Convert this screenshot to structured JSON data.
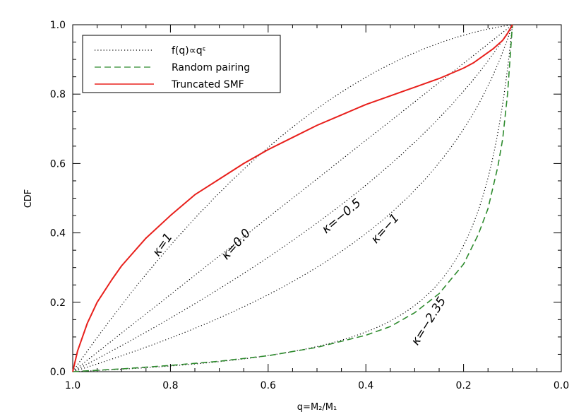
{
  "chart_data": {
    "type": "line",
    "xlabel": "q=M₂/M₁",
    "ylabel": "CDF",
    "xlim": [
      1.0,
      0.0
    ],
    "ylim": [
      0.0,
      1.0
    ],
    "x_reversed": true,
    "grid": false,
    "legend": {
      "placement": "top-left",
      "entries": [
        {
          "label": "f(q)∝qᵋ",
          "style": "dotted",
          "color": "#000000"
        },
        {
          "label": "Random pairing",
          "style": "dashed",
          "color": "#2e8b2e"
        },
        {
          "label": "Truncated SMF",
          "style": "solid",
          "color": "#e8201c"
        }
      ]
    },
    "xticks": [
      "1.0",
      "0.8",
      "0.6",
      "0.4",
      "0.2",
      "0.0"
    ],
    "yticks": [
      "0.0",
      "0.2",
      "0.4",
      "0.6",
      "0.8",
      "1.0"
    ],
    "q_min": 0.1,
    "power_law_series": [
      {
        "label": "κ=1",
        "kappa": 1,
        "style": "dotted",
        "color": "#000000",
        "label_at": {
          "x": 0.81,
          "y": 0.36
        },
        "label_angle": -55
      },
      {
        "label": "κ=0.0",
        "kappa": 0,
        "style": "dotted",
        "color": "#000000",
        "label_at": {
          "x": 0.66,
          "y": 0.36
        },
        "label_angle": -48
      },
      {
        "label": "κ=−0.5",
        "kappa": -0.5,
        "style": "dotted",
        "color": "#000000",
        "label_at": {
          "x": 0.445,
          "y": 0.44
        },
        "label_angle": -40
      },
      {
        "label": "κ=−1",
        "kappa": -1,
        "style": "dotted",
        "color": "#000000",
        "label_at": {
          "x": 0.355,
          "y": 0.405
        },
        "label_angle": -48
      },
      {
        "label": "κ=−2.35",
        "kappa": -2.35,
        "style": "dotted",
        "color": "#000000",
        "label_at": {
          "x": 0.265,
          "y": 0.14
        },
        "label_angle": -58
      }
    ],
    "random_pairing": {
      "name": "Random pairing",
      "color": "#2e8b2e",
      "style": "dashed",
      "x": [
        1.0,
        0.9,
        0.8,
        0.7,
        0.6,
        0.5,
        0.4,
        0.35,
        0.3,
        0.25,
        0.2,
        0.17,
        0.15,
        0.13,
        0.12,
        0.11,
        0.1
      ],
      "y": [
        0.0,
        0.008,
        0.018,
        0.03,
        0.046,
        0.07,
        0.105,
        0.13,
        0.17,
        0.225,
        0.31,
        0.395,
        0.47,
        0.59,
        0.67,
        0.8,
        1.0
      ]
    },
    "truncated_smf": {
      "name": "Truncated SMF",
      "color": "#e8201c",
      "style": "solid",
      "x": [
        1.0,
        0.99,
        0.97,
        0.95,
        0.92,
        0.9,
        0.85,
        0.8,
        0.75,
        0.7,
        0.65,
        0.6,
        0.55,
        0.5,
        0.45,
        0.4,
        0.35,
        0.3,
        0.25,
        0.2,
        0.18,
        0.16,
        0.14,
        0.12,
        0.11,
        0.1
      ],
      "y": [
        0.0,
        0.06,
        0.14,
        0.2,
        0.265,
        0.305,
        0.385,
        0.45,
        0.51,
        0.555,
        0.6,
        0.64,
        0.675,
        0.71,
        0.74,
        0.77,
        0.795,
        0.82,
        0.845,
        0.875,
        0.89,
        0.91,
        0.93,
        0.955,
        0.975,
        1.0
      ]
    }
  }
}
